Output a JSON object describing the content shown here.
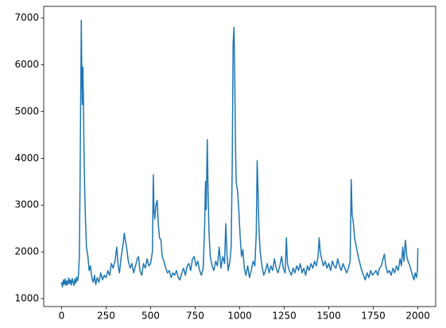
{
  "chart_data": {
    "type": "line",
    "color": "#1f77b4",
    "x": [
      0,
      5,
      10,
      15,
      20,
      25,
      30,
      35,
      40,
      45,
      50,
      55,
      60,
      65,
      70,
      75,
      80,
      85,
      90,
      95,
      100,
      104,
      108,
      111,
      114,
      117,
      120,
      123,
      126,
      130,
      135,
      140,
      148,
      155,
      162,
      170,
      178,
      185,
      192,
      200,
      210,
      220,
      230,
      240,
      250,
      260,
      270,
      280,
      290,
      300,
      310,
      318,
      325,
      335,
      345,
      352,
      358,
      365,
      375,
      385,
      395,
      405,
      415,
      425,
      432,
      440,
      450,
      460,
      470,
      480,
      490,
      500,
      510,
      515,
      519,
      523,
      530,
      537,
      543,
      550,
      558,
      565,
      575,
      585,
      595,
      605,
      615,
      625,
      635,
      645,
      655,
      665,
      675,
      685,
      695,
      705,
      715,
      725,
      735,
      745,
      755,
      765,
      775,
      785,
      795,
      803,
      808,
      812,
      818,
      823,
      828,
      835,
      845,
      855,
      865,
      875,
      885,
      895,
      905,
      915,
      922,
      928,
      935,
      945,
      952,
      958,
      963,
      968,
      972,
      976,
      980,
      988,
      995,
      1003,
      1010,
      1018,
      1026,
      1035,
      1045,
      1055,
      1065,
      1075,
      1085,
      1093,
      1098,
      1103,
      1108,
      1115,
      1125,
      1135,
      1145,
      1155,
      1165,
      1175,
      1185,
      1195,
      1205,
      1215,
      1225,
      1235,
      1245,
      1255,
      1262,
      1268,
      1278,
      1290,
      1300,
      1310,
      1320,
      1330,
      1340,
      1350,
      1360,
      1370,
      1380,
      1390,
      1400,
      1410,
      1420,
      1430,
      1440,
      1446,
      1452,
      1460,
      1470,
      1480,
      1490,
      1500,
      1510,
      1520,
      1530,
      1540,
      1550,
      1560,
      1570,
      1580,
      1590,
      1600,
      1610,
      1620,
      1626,
      1631,
      1637,
      1645,
      1655,
      1665,
      1675,
      1685,
      1695,
      1705,
      1715,
      1725,
      1735,
      1745,
      1755,
      1765,
      1775,
      1785,
      1795,
      1805,
      1812,
      1820,
      1830,
      1840,
      1850,
      1860,
      1870,
      1880,
      1890,
      1900,
      1908,
      1915,
      1922,
      1930,
      1938,
      1945,
      1955,
      1962,
      1970,
      1978,
      1985,
      1992,
      1998,
      2000
    ],
    "values": [
      1350,
      1250,
      1400,
      1300,
      1420,
      1280,
      1380,
      1300,
      1440,
      1320,
      1400,
      1290,
      1430,
      1350,
      1280,
      1420,
      1330,
      1460,
      1380,
      1500,
      1900,
      3500,
      5500,
      6950,
      5700,
      5150,
      5950,
      5200,
      4200,
      3300,
      2600,
      2100,
      1900,
      1600,
      1700,
      1450,
      1350,
      1500,
      1300,
      1450,
      1350,
      1550,
      1400,
      1500,
      1450,
      1600,
      1500,
      1750,
      1650,
      1800,
      2100,
      1700,
      1550,
      1900,
      2150,
      2400,
      2250,
      2100,
      1800,
      1650,
      1750,
      1550,
      1700,
      1850,
      1900,
      1600,
      1500,
      1750,
      1650,
      1850,
      1700,
      1750,
      2000,
      3650,
      2900,
      2700,
      3000,
      3100,
      2600,
      2300,
      2250,
      1900,
      1800,
      1650,
      1550,
      1600,
      1450,
      1550,
      1500,
      1600,
      1450,
      1400,
      1550,
      1650,
      1500,
      1700,
      1750,
      1600,
      1850,
      1900,
      1700,
      1800,
      1600,
      1500,
      1650,
      2500,
      3500,
      2900,
      4400,
      3200,
      2400,
      1900,
      1700,
      1600,
      1800,
      1700,
      2100,
      1650,
      1900,
      1750,
      2600,
      2000,
      1600,
      1800,
      2100,
      3800,
      6450,
      6800,
      5800,
      4400,
      3500,
      3300,
      2900,
      2300,
      1900,
      2050,
      1650,
      1500,
      1700,
      1450,
      1600,
      1800,
      1700,
      2400,
      3950,
      3300,
      2500,
      2000,
      1700,
      1500,
      1600,
      1750,
      1550,
      1700,
      1600,
      1850,
      1650,
      1550,
      1700,
      1900,
      1650,
      1550,
      2300,
      1750,
      1600,
      1500,
      1650,
      1550,
      1700,
      1600,
      1750,
      1550,
      1650,
      1500,
      1700,
      1600,
      1750,
      1650,
      1800,
      1700,
      1900,
      2300,
      2000,
      1850,
      1700,
      1800,
      1650,
      1750,
      1600,
      1800,
      1700,
      1650,
      1850,
      1700,
      1600,
      1750,
      1650,
      1550,
      1650,
      1800,
      3550,
      2800,
      2650,
      2300,
      2100,
      1900,
      1750,
      1600,
      1500,
      1400,
      1550,
      1450,
      1600,
      1500,
      1550,
      1600,
      1500,
      1650,
      1700,
      1850,
      1950,
      1700,
      1550,
      1600,
      1500,
      1650,
      1550,
      1700,
      1600,
      1850,
      1700,
      2100,
      1800,
      2250,
      1900,
      1800,
      1700,
      1600,
      1500,
      1400,
      1550,
      1450,
      1600,
      2080
    ],
    "xlim": [
      -100,
      2100
    ],
    "ylim": [
      830,
      7250
    ],
    "xticks": [
      0,
      250,
      500,
      750,
      1000,
      1250,
      1500,
      1750,
      2000
    ],
    "yticks": [
      1000,
      2000,
      3000,
      4000,
      5000,
      6000,
      7000
    ]
  }
}
